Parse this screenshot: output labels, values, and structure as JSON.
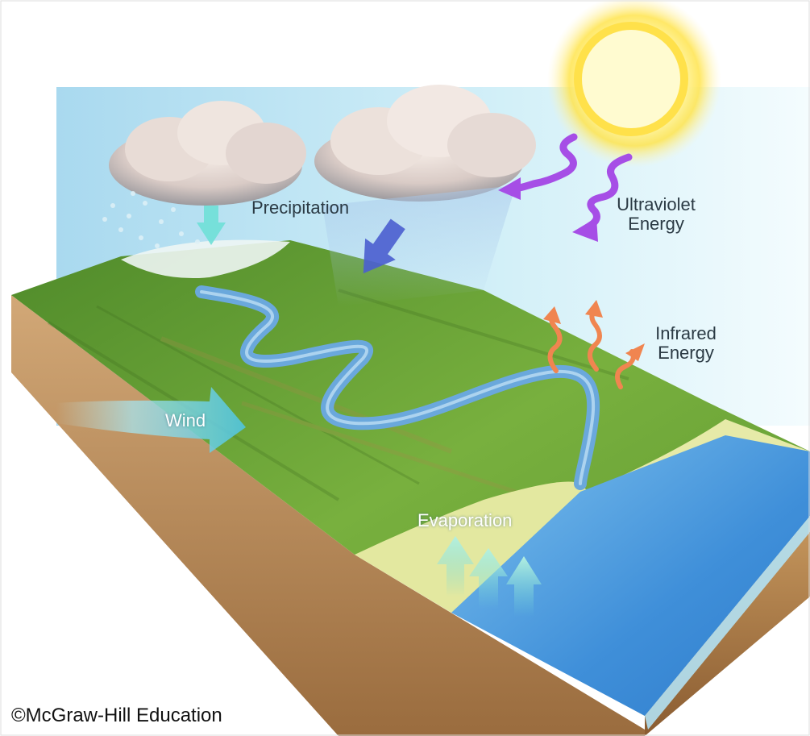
{
  "diagram": {
    "labels": {
      "precipitation": "Precipitation",
      "ultraviolet_line1": "Ultraviolet",
      "ultraviolet_line2": "Energy",
      "infrared_line1": "Infrared",
      "infrared_line2": "Energy",
      "wind": "Wind",
      "evaporation": "Evaporation"
    },
    "credit": "©McGraw-Hill Education"
  },
  "colors": {
    "sky": "#bfe6f2",
    "land": "#6fa63a",
    "soil": "#b88a57",
    "water": "#3f8fd9",
    "river": "#6aa8dc",
    "beach": "#e3e8a0",
    "sun": "#ffe44d",
    "ultraviolet_arrow": "#a64ee6",
    "infrared_arrow": "#f08550",
    "precip_arrow": "#4b5fd0",
    "snow_arrow": "#6fe0d8",
    "wind_arrow": "#8fe0ee",
    "evap_arrow": "#9ee8dc"
  }
}
